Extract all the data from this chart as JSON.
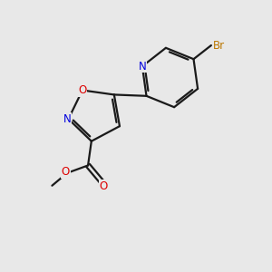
{
  "background_color": "#e8e8e8",
  "bond_color": "#1a1a1a",
  "atom_colors": {
    "N": "#0000dd",
    "O": "#dd0000",
    "Br": "#bb7700",
    "C": "#1a1a1a"
  },
  "figsize": [
    3.0,
    3.0
  ],
  "dpi": 100,
  "bond_lw": 1.6,
  "font_size": 8.5,
  "xlim": [
    0,
    10
  ],
  "ylim": [
    0,
    10
  ]
}
